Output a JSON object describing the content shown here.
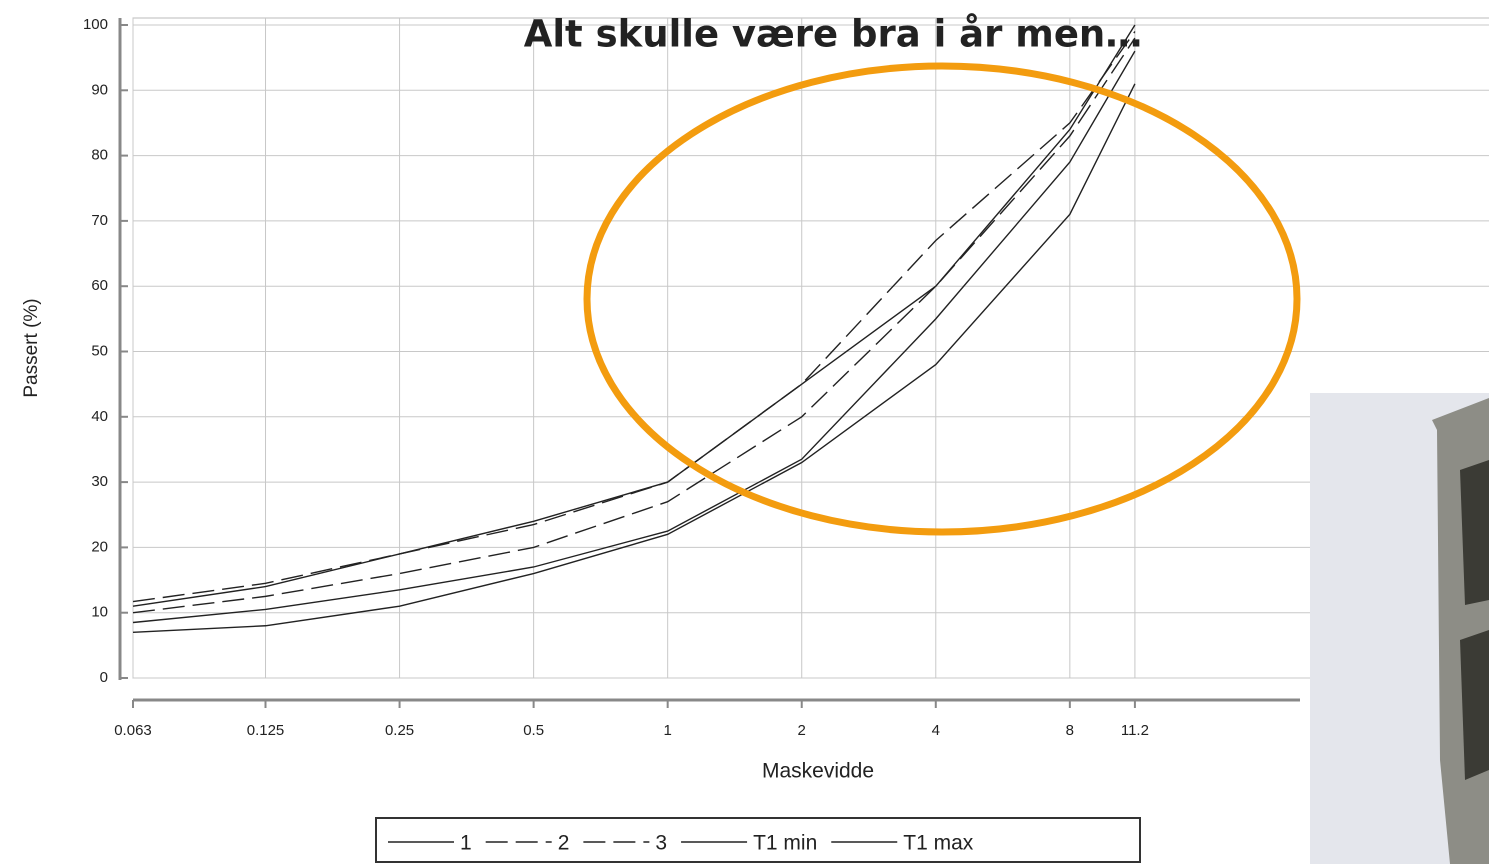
{
  "chart_data": {
    "type": "line",
    "title": "Alt skulle være bra i år men…",
    "x_label": "Maskevidde",
    "y_label": "Passert (%)",
    "x": [
      0.063,
      0.125,
      0.25,
      0.5,
      1,
      2,
      4,
      8,
      11.2
    ],
    "x_scale": "log",
    "xlim": [
      0.063,
      64
    ],
    "xticks": [
      0.063,
      0.125,
      0.25,
      0.5,
      1,
      2,
      4,
      8,
      11.2
    ],
    "ylim": [
      0,
      100
    ],
    "yticks": [
      0,
      10,
      20,
      30,
      40,
      50,
      60,
      70,
      80,
      90,
      100
    ],
    "grid": true,
    "legend": "bottom",
    "series": [
      {
        "name": "1",
        "color": "#222222",
        "line_style": "solid",
        "values": [
          8.5,
          10.5,
          13.5,
          17,
          22.5,
          33.5,
          55,
          79,
          96
        ]
      },
      {
        "name": "2",
        "color": "#222222",
        "line_style": "dashed",
        "values": [
          11.7,
          14.5,
          19,
          23.5,
          30,
          45,
          67,
          85,
          99
        ]
      },
      {
        "name": "3",
        "color": "#222222",
        "line_style": "dashed",
        "values": [
          10,
          12.5,
          16,
          20,
          27,
          40,
          60,
          83,
          98
        ]
      },
      {
        "name": "T1 min",
        "color": "#222222",
        "line_style": "solid",
        "values": [
          7,
          8,
          11,
          16,
          22,
          33,
          48,
          71,
          91
        ]
      },
      {
        "name": "T1 max",
        "color": "#222222",
        "line_style": "solid",
        "values": [
          11,
          14,
          19,
          24,
          30,
          45,
          60,
          84,
          100
        ]
      }
    ]
  }
}
